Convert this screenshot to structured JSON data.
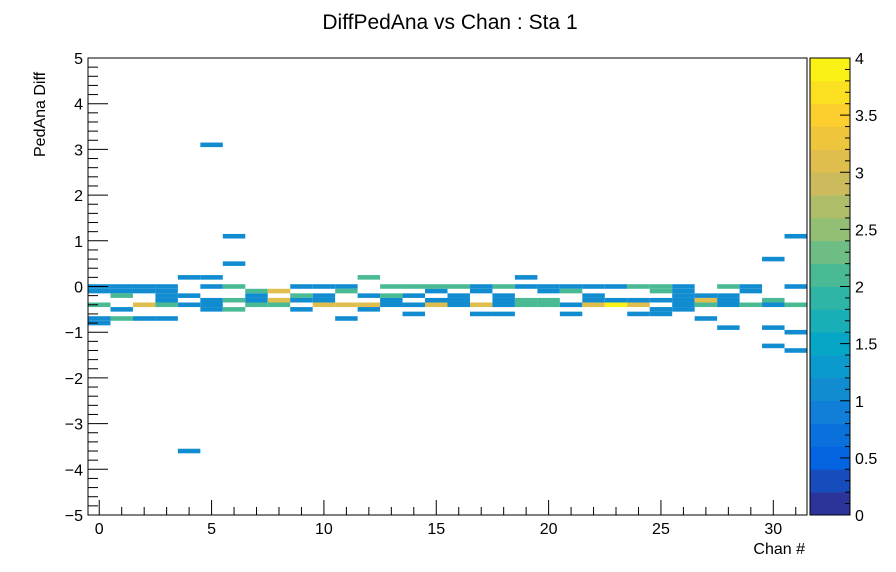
{
  "chart_data": {
    "type": "heatmap",
    "title": "DiffPedAna vs Chan : Sta 1",
    "xlabel": "Chan #",
    "ylabel": "PedAna Diff",
    "xlim": [
      -0.5,
      31.5
    ],
    "ylim": [
      -5,
      5
    ],
    "x_bin_width": 1,
    "y_bin_width": 0.1,
    "x_ticks": [
      0,
      5,
      10,
      15,
      20,
      25,
      30
    ],
    "y_ticks": [
      -5,
      -4,
      -3,
      -2,
      -1,
      0,
      1,
      2,
      3,
      4,
      5
    ],
    "x_tick_labels": [
      "0",
      "5",
      "10",
      "15",
      "20",
      "25",
      "30"
    ],
    "y_tick_labels": [
      "−5",
      "−4",
      "−3",
      "−2",
      "−1",
      "0",
      "1",
      "2",
      "3",
      "4",
      "5"
    ],
    "colorbar": {
      "range": [
        0,
        4
      ],
      "ticks": [
        0,
        0.5,
        1,
        1.5,
        2,
        2.5,
        3,
        3.5,
        4
      ],
      "tick_labels": [
        "0",
        "0.5",
        "1",
        "1.5",
        "2",
        "2.5",
        "3",
        "3.5",
        "4"
      ],
      "palette": [
        "#352a87",
        "#0363e1",
        "#1485d4",
        "#06a7c6",
        "#38b99e",
        "#92bf73",
        "#d9ba56",
        "#fcce2e",
        "#f9fb0e"
      ]
    },
    "cells": [
      [
        0,
        0.0,
        1
      ],
      [
        0,
        -0.1,
        1
      ],
      [
        0,
        -0.4,
        2
      ],
      [
        0,
        -0.7,
        1
      ],
      [
        0,
        -0.8,
        1
      ],
      [
        1,
        0.0,
        1
      ],
      [
        1,
        -0.1,
        1
      ],
      [
        1,
        -0.2,
        2
      ],
      [
        1,
        -0.5,
        1
      ],
      [
        1,
        -0.7,
        2
      ],
      [
        2,
        0.0,
        1
      ],
      [
        2,
        -0.1,
        1
      ],
      [
        2,
        -0.4,
        3
      ],
      [
        2,
        -0.7,
        1
      ],
      [
        3,
        0.0,
        1
      ],
      [
        3,
        -0.1,
        1
      ],
      [
        3,
        -0.2,
        1
      ],
      [
        3,
        -0.3,
        1
      ],
      [
        3,
        -0.4,
        2
      ],
      [
        3,
        -0.7,
        1
      ],
      [
        4,
        0.2,
        1
      ],
      [
        4,
        -0.2,
        1
      ],
      [
        4,
        -0.4,
        1
      ],
      [
        4,
        -3.6,
        1
      ],
      [
        5,
        3.1,
        1
      ],
      [
        5,
        0.2,
        1
      ],
      [
        5,
        0.0,
        1
      ],
      [
        5,
        -0.3,
        1
      ],
      [
        5,
        -0.4,
        1
      ],
      [
        5,
        -0.5,
        1
      ],
      [
        6,
        1.1,
        1
      ],
      [
        6,
        0.5,
        1
      ],
      [
        6,
        0.0,
        2
      ],
      [
        6,
        -0.3,
        2
      ],
      [
        6,
        -0.5,
        2
      ],
      [
        7,
        -0.1,
        2
      ],
      [
        7,
        -0.2,
        1
      ],
      [
        7,
        -0.3,
        1
      ],
      [
        7,
        -0.4,
        2
      ],
      [
        8,
        -0.1,
        3
      ],
      [
        8,
        -0.3,
        3
      ],
      [
        8,
        -0.4,
        2
      ],
      [
        9,
        0.0,
        1
      ],
      [
        9,
        -0.2,
        2
      ],
      [
        9,
        -0.3,
        1
      ],
      [
        9,
        -0.5,
        1
      ],
      [
        10,
        0.0,
        1
      ],
      [
        10,
        -0.2,
        1
      ],
      [
        10,
        -0.3,
        1
      ],
      [
        10,
        -0.4,
        3
      ],
      [
        11,
        0.0,
        1
      ],
      [
        11,
        -0.1,
        2
      ],
      [
        11,
        -0.4,
        3
      ],
      [
        11,
        -0.7,
        1
      ],
      [
        12,
        0.2,
        2
      ],
      [
        12,
        -0.2,
        1
      ],
      [
        12,
        -0.4,
        3
      ],
      [
        12,
        -0.5,
        1
      ],
      [
        13,
        0.0,
        2
      ],
      [
        13,
        -0.2,
        2
      ],
      [
        13,
        -0.3,
        1
      ],
      [
        13,
        -0.4,
        1
      ],
      [
        14,
        0.0,
        2
      ],
      [
        14,
        -0.2,
        1
      ],
      [
        14,
        -0.4,
        1
      ],
      [
        14,
        -0.6,
        1
      ],
      [
        15,
        0.0,
        2
      ],
      [
        15,
        -0.1,
        1
      ],
      [
        15,
        -0.3,
        1
      ],
      [
        15,
        -0.4,
        3
      ],
      [
        16,
        0.0,
        2
      ],
      [
        16,
        -0.2,
        1
      ],
      [
        16,
        -0.3,
        1
      ],
      [
        16,
        -0.4,
        1
      ],
      [
        17,
        0.0,
        1
      ],
      [
        17,
        -0.1,
        1
      ],
      [
        17,
        -0.4,
        3
      ],
      [
        17,
        -0.6,
        1
      ],
      [
        18,
        0.0,
        2
      ],
      [
        18,
        -0.2,
        1
      ],
      [
        18,
        -0.3,
        1
      ],
      [
        18,
        -0.4,
        1
      ],
      [
        18,
        -0.6,
        1
      ],
      [
        19,
        0.2,
        1
      ],
      [
        19,
        0.0,
        1
      ],
      [
        19,
        -0.3,
        2
      ],
      [
        19,
        -0.4,
        2
      ],
      [
        20,
        0.0,
        1
      ],
      [
        20,
        -0.1,
        1
      ],
      [
        20,
        -0.3,
        2
      ],
      [
        20,
        -0.4,
        2
      ],
      [
        21,
        0.0,
        1
      ],
      [
        21,
        -0.1,
        2
      ],
      [
        21,
        -0.4,
        1
      ],
      [
        21,
        -0.6,
        1
      ],
      [
        22,
        0.0,
        1
      ],
      [
        22,
        -0.2,
        1
      ],
      [
        22,
        -0.3,
        1
      ],
      [
        22,
        -0.4,
        3
      ],
      [
        23,
        0.0,
        1
      ],
      [
        23,
        -0.3,
        1
      ],
      [
        23,
        -0.4,
        4
      ],
      [
        24,
        0.0,
        2
      ],
      [
        24,
        -0.3,
        1
      ],
      [
        24,
        -0.4,
        3
      ],
      [
        24,
        -0.6,
        1
      ],
      [
        25,
        0.0,
        2
      ],
      [
        25,
        -0.1,
        2
      ],
      [
        25,
        -0.3,
        1
      ],
      [
        25,
        -0.5,
        1
      ],
      [
        25,
        -0.6,
        1
      ],
      [
        26,
        0.0,
        1
      ],
      [
        26,
        -0.1,
        1
      ],
      [
        26,
        -0.2,
        1
      ],
      [
        26,
        -0.3,
        1
      ],
      [
        26,
        -0.4,
        1
      ],
      [
        26,
        -0.5,
        1
      ],
      [
        27,
        -0.2,
        1
      ],
      [
        27,
        -0.3,
        3
      ],
      [
        27,
        -0.4,
        2
      ],
      [
        27,
        -0.7,
        1
      ],
      [
        28,
        0.0,
        2
      ],
      [
        28,
        -0.2,
        1
      ],
      [
        28,
        -0.3,
        1
      ],
      [
        28,
        -0.4,
        1
      ],
      [
        28,
        -0.9,
        1
      ],
      [
        29,
        0.0,
        1
      ],
      [
        29,
        -0.1,
        1
      ],
      [
        29,
        -0.4,
        2
      ],
      [
        30,
        0.6,
        1
      ],
      [
        30,
        -0.3,
        2
      ],
      [
        30,
        -0.4,
        1
      ],
      [
        30,
        -0.9,
        1
      ],
      [
        30,
        -1.3,
        1
      ],
      [
        31,
        1.1,
        1
      ],
      [
        31,
        0.0,
        1
      ],
      [
        31,
        -0.4,
        2
      ],
      [
        31,
        -1.0,
        1
      ],
      [
        31,
        -1.4,
        1
      ]
    ]
  }
}
